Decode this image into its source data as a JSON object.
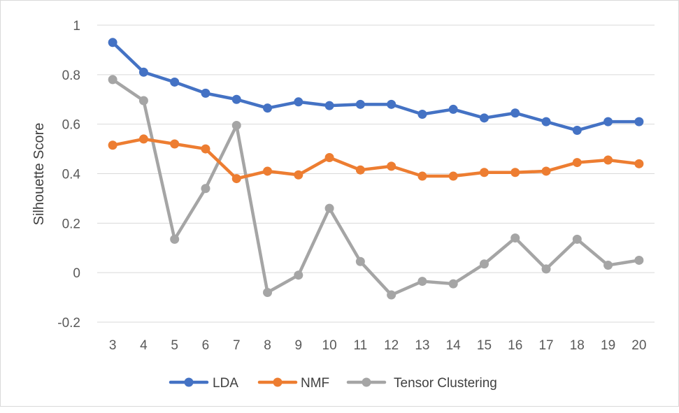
{
  "chart_data": {
    "type": "line",
    "title": "",
    "xlabel": "",
    "ylabel": "Silhouette Score",
    "ylim": [
      -0.2,
      1
    ],
    "yticks": [
      -0.2,
      0,
      0.2,
      0.4,
      0.6,
      0.8,
      1
    ],
    "ytick_labels": [
      "-0.2",
      "0",
      "0.2",
      "0.4",
      "0.6",
      "0.8",
      "1"
    ],
    "grid": true,
    "legend_position": "bottom",
    "categories": [
      "3",
      "4",
      "5",
      "6",
      "7",
      "8",
      "9",
      "10",
      "11",
      "12",
      "13",
      "14",
      "15",
      "16",
      "17",
      "18",
      "19",
      "20"
    ],
    "series": [
      {
        "name": "LDA",
        "color": "#4472C4",
        "values": [
          0.93,
          0.81,
          0.77,
          0.725,
          0.7,
          0.665,
          0.69,
          0.675,
          0.68,
          0.68,
          0.64,
          0.66,
          0.625,
          0.645,
          0.61,
          0.575,
          0.61,
          0.61
        ]
      },
      {
        "name": "NMF",
        "color": "#ED7D31",
        "values": [
          0.515,
          0.54,
          0.52,
          0.5,
          0.38,
          0.41,
          0.395,
          0.465,
          0.415,
          0.43,
          0.39,
          0.39,
          0.405,
          0.405,
          0.41,
          0.445,
          0.455,
          0.44
        ]
      },
      {
        "name": "Tensor Clustering",
        "color": "#A5A5A5",
        "values": [
          0.78,
          0.695,
          0.135,
          0.34,
          0.595,
          -0.08,
          -0.01,
          0.26,
          0.045,
          -0.09,
          -0.035,
          -0.045,
          0.035,
          0.14,
          0.015,
          0.135,
          0.03,
          0.05
        ]
      }
    ]
  }
}
